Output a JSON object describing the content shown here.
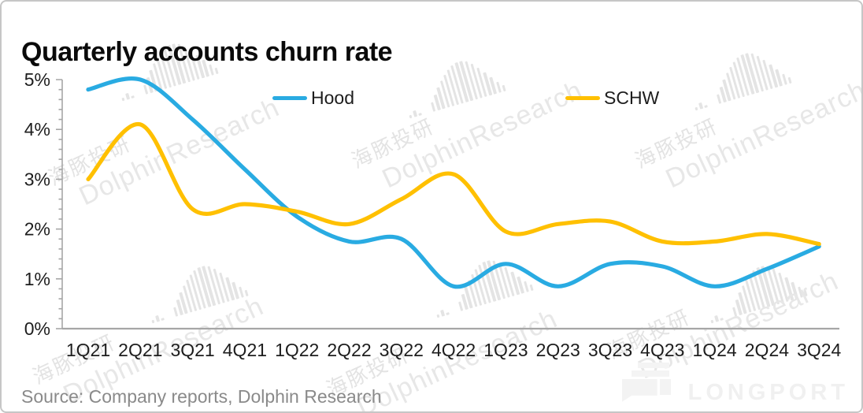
{
  "title": "Quarterly accounts churn rate",
  "source": "Source: Company reports, Dolphin Research",
  "watermark": {
    "cjk": "海豚投研",
    "latin": "DolphinResearch",
    "brand": "LONGPORT"
  },
  "chart_data": {
    "type": "line",
    "title": "Quarterly accounts churn rate",
    "categories": [
      "1Q21",
      "2Q21",
      "3Q21",
      "4Q21",
      "1Q22",
      "2Q22",
      "3Q22",
      "4Q22",
      "1Q23",
      "2Q23",
      "3Q23",
      "4Q23",
      "1Q24",
      "2Q24",
      "3Q24"
    ],
    "series": [
      {
        "name": "Hood",
        "color": "#29ABE2",
        "values": [
          4.8,
          5.0,
          4.2,
          3.2,
          2.25,
          1.75,
          1.8,
          0.85,
          1.3,
          0.85,
          1.3,
          1.25,
          0.85,
          1.2,
          1.65
        ]
      },
      {
        "name": "SCHW",
        "color": "#FFC000",
        "values": [
          3.0,
          4.1,
          2.4,
          2.5,
          2.35,
          2.1,
          2.6,
          3.1,
          1.95,
          2.1,
          2.15,
          1.75,
          1.75,
          1.9,
          1.7
        ]
      }
    ],
    "y_ticks": [
      "0%",
      "1%",
      "2%",
      "3%",
      "4%",
      "5%"
    ],
    "ylim": [
      0,
      5
    ],
    "minor_tick_step": 0.2,
    "unit": "percent",
    "smooth": true,
    "grid": false,
    "legend_position": "top",
    "axis_color": "#A6A6A6",
    "label_color": "#1d1d1d"
  }
}
